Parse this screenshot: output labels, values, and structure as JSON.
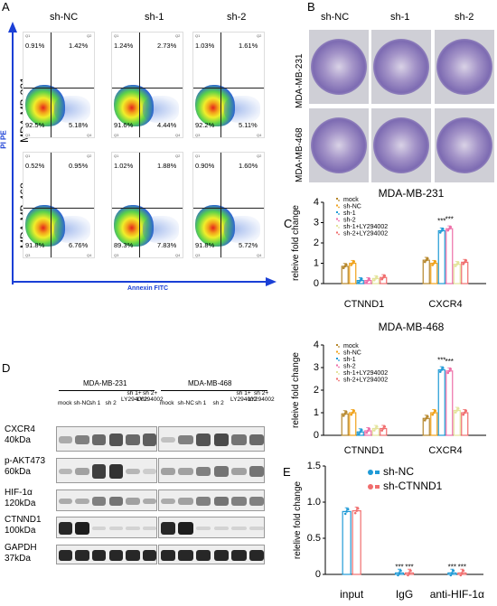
{
  "panels": {
    "a": "A",
    "b": "B",
    "c": "C",
    "d": "D",
    "e": "E"
  },
  "facs": {
    "columns": [
      "sh-NC",
      "sh-1",
      "sh-2"
    ],
    "rows": [
      "MDA-MB-231",
      "MDA-MB-468"
    ],
    "ylabel": "PI PE",
    "xlabel": "Annexin FITC",
    "quadrant_tags": [
      "Q1",
      "Q2",
      "Q3",
      "Q4"
    ],
    "values": [
      [
        {
          "q1": "0.91%",
          "q2": "1.42%",
          "q4": "92.5%",
          "q3": "5.18%"
        },
        {
          "q1": "1.24%",
          "q2": "2.73%",
          "q4": "91.6%",
          "q3": "4.44%"
        },
        {
          "q1": "1.03%",
          "q2": "1.61%",
          "q4": "92.2%",
          "q3": "5.11%"
        }
      ],
      [
        {
          "q1": "0.52%",
          "q2": "0.95%",
          "q4": "91.8%",
          "q3": "6.76%"
        },
        {
          "q1": "1.02%",
          "q2": "1.88%",
          "q4": "89.3%",
          "q3": "7.83%"
        },
        {
          "q1": "0.90%",
          "q2": "1.60%",
          "q4": "91.8%",
          "q3": "5.72%"
        }
      ]
    ]
  },
  "colony": {
    "columns": [
      "sh-NC",
      "sh-1",
      "sh-2"
    ],
    "rows": [
      "MDA-MB-231",
      "MDA-MB-468"
    ]
  },
  "blot": {
    "groups": [
      "MDA-MB-231",
      "MDA-MB-468"
    ],
    "lanes": [
      "mock",
      "sh-NC",
      "sh 1",
      "sh 2",
      "sh 1+\nLY294002",
      "sh 2+\nLY294002"
    ],
    "proteins": [
      {
        "name": "CXCR4",
        "mw": "40kDa"
      },
      {
        "name": "p-AKT473",
        "mw": "60kDa"
      },
      {
        "name": "HIF-1α",
        "mw": "120kDa"
      },
      {
        "name": "CTNND1",
        "mw": "100kDa"
      },
      {
        "name": "GAPDH",
        "mw": "37kDa"
      }
    ]
  },
  "chart_data": [
    {
      "type": "bar",
      "title": "MDA-MB-231",
      "ylabel": "releive fold change",
      "ylim": [
        0,
        4
      ],
      "yticks": [
        "0",
        "1",
        "2",
        "3",
        "4"
      ],
      "categories": [
        "CTNND1",
        "CXCR4"
      ],
      "legend": "top-left",
      "series": [
        {
          "name": "mock",
          "color": "#b5862a",
          "values": [
            0.85,
            1.15
          ]
        },
        {
          "name": "sh-NC",
          "color": "#f0a21a",
          "values": [
            1.0,
            1.0
          ]
        },
        {
          "name": "sh-1",
          "color": "#1f9ad6",
          "values": [
            0.15,
            2.6
          ]
        },
        {
          "name": "sh-2",
          "color": "#ee6fa8",
          "values": [
            0.15,
            2.7
          ]
        },
        {
          "name": "sh-1+LY294002",
          "color": "#e3e39a",
          "values": [
            0.25,
            0.95
          ]
        },
        {
          "name": "sh-2+LY294002",
          "color": "#f06d6d",
          "values": [
            0.3,
            1.05
          ]
        }
      ],
      "annotations": [
        "***",
        "***"
      ]
    },
    {
      "type": "bar",
      "title": "MDA-MB-468",
      "ylabel": "releive fold change",
      "ylim": [
        0,
        4
      ],
      "yticks": [
        "0",
        "1",
        "2",
        "3",
        "4"
      ],
      "categories": [
        "CTNND1",
        "CXCR4"
      ],
      "legend": "top-left",
      "series": [
        {
          "name": "mock",
          "color": "#b5862a",
          "values": [
            0.95,
            0.75
          ]
        },
        {
          "name": "sh-NC",
          "color": "#f0a21a",
          "values": [
            1.0,
            1.0
          ]
        },
        {
          "name": "sh-1",
          "color": "#1f9ad6",
          "values": [
            0.15,
            2.9
          ]
        },
        {
          "name": "sh-2",
          "color": "#ee6fa8",
          "values": [
            0.2,
            2.85
          ]
        },
        {
          "name": "sh-1+LY294002",
          "color": "#e3e39a",
          "values": [
            0.3,
            1.1
          ]
        },
        {
          "name": "sh-2+LY294002",
          "color": "#f06d6d",
          "values": [
            0.3,
            1.0
          ]
        }
      ],
      "annotations": [
        "***",
        "***"
      ]
    },
    {
      "type": "bar",
      "title": "",
      "ylabel": "relelive fold change",
      "ylim": [
        0,
        1.5
      ],
      "yticks": [
        "0",
        "0.5",
        "1.0",
        "1.5"
      ],
      "categories": [
        "input",
        "IgG",
        "anti-HIF-1α"
      ],
      "legend": "top-right",
      "series": [
        {
          "name": "sh-NC",
          "color": "#1f9ad6",
          "values": [
            0.87,
            0.02,
            0.02
          ]
        },
        {
          "name": "sh-CTNND1",
          "color": "#f06d6d",
          "values": [
            0.88,
            0.02,
            0.02
          ]
        }
      ],
      "annotations": [
        "***",
        "***",
        "***",
        "***"
      ]
    }
  ]
}
